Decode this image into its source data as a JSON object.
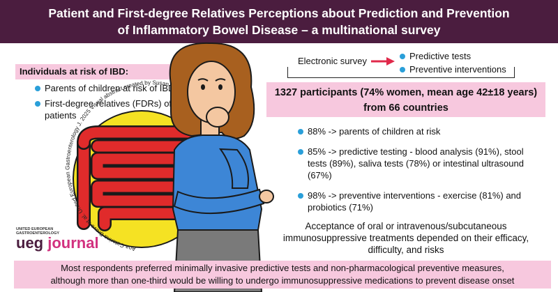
{
  "title": {
    "line1": "Patient and First-degree Relatives Perceptions about Prediction and Prevention",
    "line2": "of Inflammatory Bowel Disease – a multinational survey"
  },
  "risk_group": {
    "header": "Individuals at risk of IBD:",
    "items": [
      "Parents of children at risk of IBD",
      "First-degree relatives (FDRs) of IBD patients"
    ]
  },
  "survey": {
    "label": "Electronic survey",
    "items": [
      "Predictive tests",
      "Preventive interventions"
    ]
  },
  "participants": {
    "line1": "1327 participants (74% women, mean age 42±18 years)",
    "line2": "from 66 countries"
  },
  "findings": [
    "88% -> parents of children at risk",
    "85% -> predictive testing - blood analysis (91%), stool tests (89%), saliva tests (78%) or intestinal ultrasound (67%)",
    "98% -> preventive interventions - exercise (81%) and probiotics (71%)"
  ],
  "acceptance": "Acceptance of oral or intravenous/subcutaneous immunosuppressive treatments depended on their efficacy, difficulty, and risks",
  "conclusion": {
    "line1": "Most respondents preferred minimally invasive predictive tests and non-pharmacological preventive measures,",
    "line2": "although more than one-third would be willing to undergo immunosuppressive medications to prevent disease onset"
  },
  "credit": "Ana Catarina Bravo et al. United European Gastroenterology J. 2025 Visual abstract created by Susan Tyler",
  "logo": {
    "small_line1": "UNITED EUROPEAN",
    "small_line2": "GASTROENTEROLOGY",
    "word1": "ueg",
    "word2": "journal"
  },
  "colors": {
    "title_bg": "#4b1d3f",
    "highlight_bg": "#f7c8de",
    "bullet": "#2a9fd9",
    "arrow": "#e0284a",
    "intestine": "#e02b2b",
    "circle": "#f5e223",
    "shirt": "#3d86d6"
  },
  "icons": [
    "intestine-icon",
    "thinking-person-illustration",
    "arrow-right-icon"
  ]
}
